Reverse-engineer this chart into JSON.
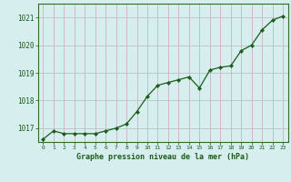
{
  "x": [
    0,
    1,
    2,
    3,
    4,
    5,
    6,
    7,
    8,
    9,
    10,
    11,
    12,
    13,
    14,
    15,
    16,
    17,
    18,
    19,
    20,
    21,
    22,
    23
  ],
  "y": [
    1016.6,
    1016.9,
    1016.8,
    1016.8,
    1016.8,
    1016.8,
    1016.9,
    1017.0,
    1017.15,
    1017.6,
    1018.15,
    1018.55,
    1018.65,
    1018.75,
    1018.85,
    1018.45,
    1019.1,
    1019.2,
    1019.25,
    1019.8,
    1020.0,
    1020.55,
    1020.9,
    1021.05
  ],
  "line_color": "#1a5c1a",
  "marker": "D",
  "marker_size": 2.2,
  "bg_color": "#d6eeee",
  "xlabel": "Graphe pression niveau de la mer (hPa)",
  "xlabel_color": "#1a5c1a",
  "tick_color": "#1a5c1a",
  "ylim": [
    1016.5,
    1021.5
  ],
  "yticks": [
    1017,
    1018,
    1019,
    1020,
    1021
  ],
  "xticks": [
    0,
    1,
    2,
    3,
    4,
    5,
    6,
    7,
    8,
    9,
    10,
    11,
    12,
    13,
    14,
    15,
    16,
    17,
    18,
    19,
    20,
    21,
    22,
    23
  ],
  "axis_color": "#2d6e2d",
  "grid_h_color": "#c0c8c8",
  "grid_v_color": "#d0b8c8"
}
